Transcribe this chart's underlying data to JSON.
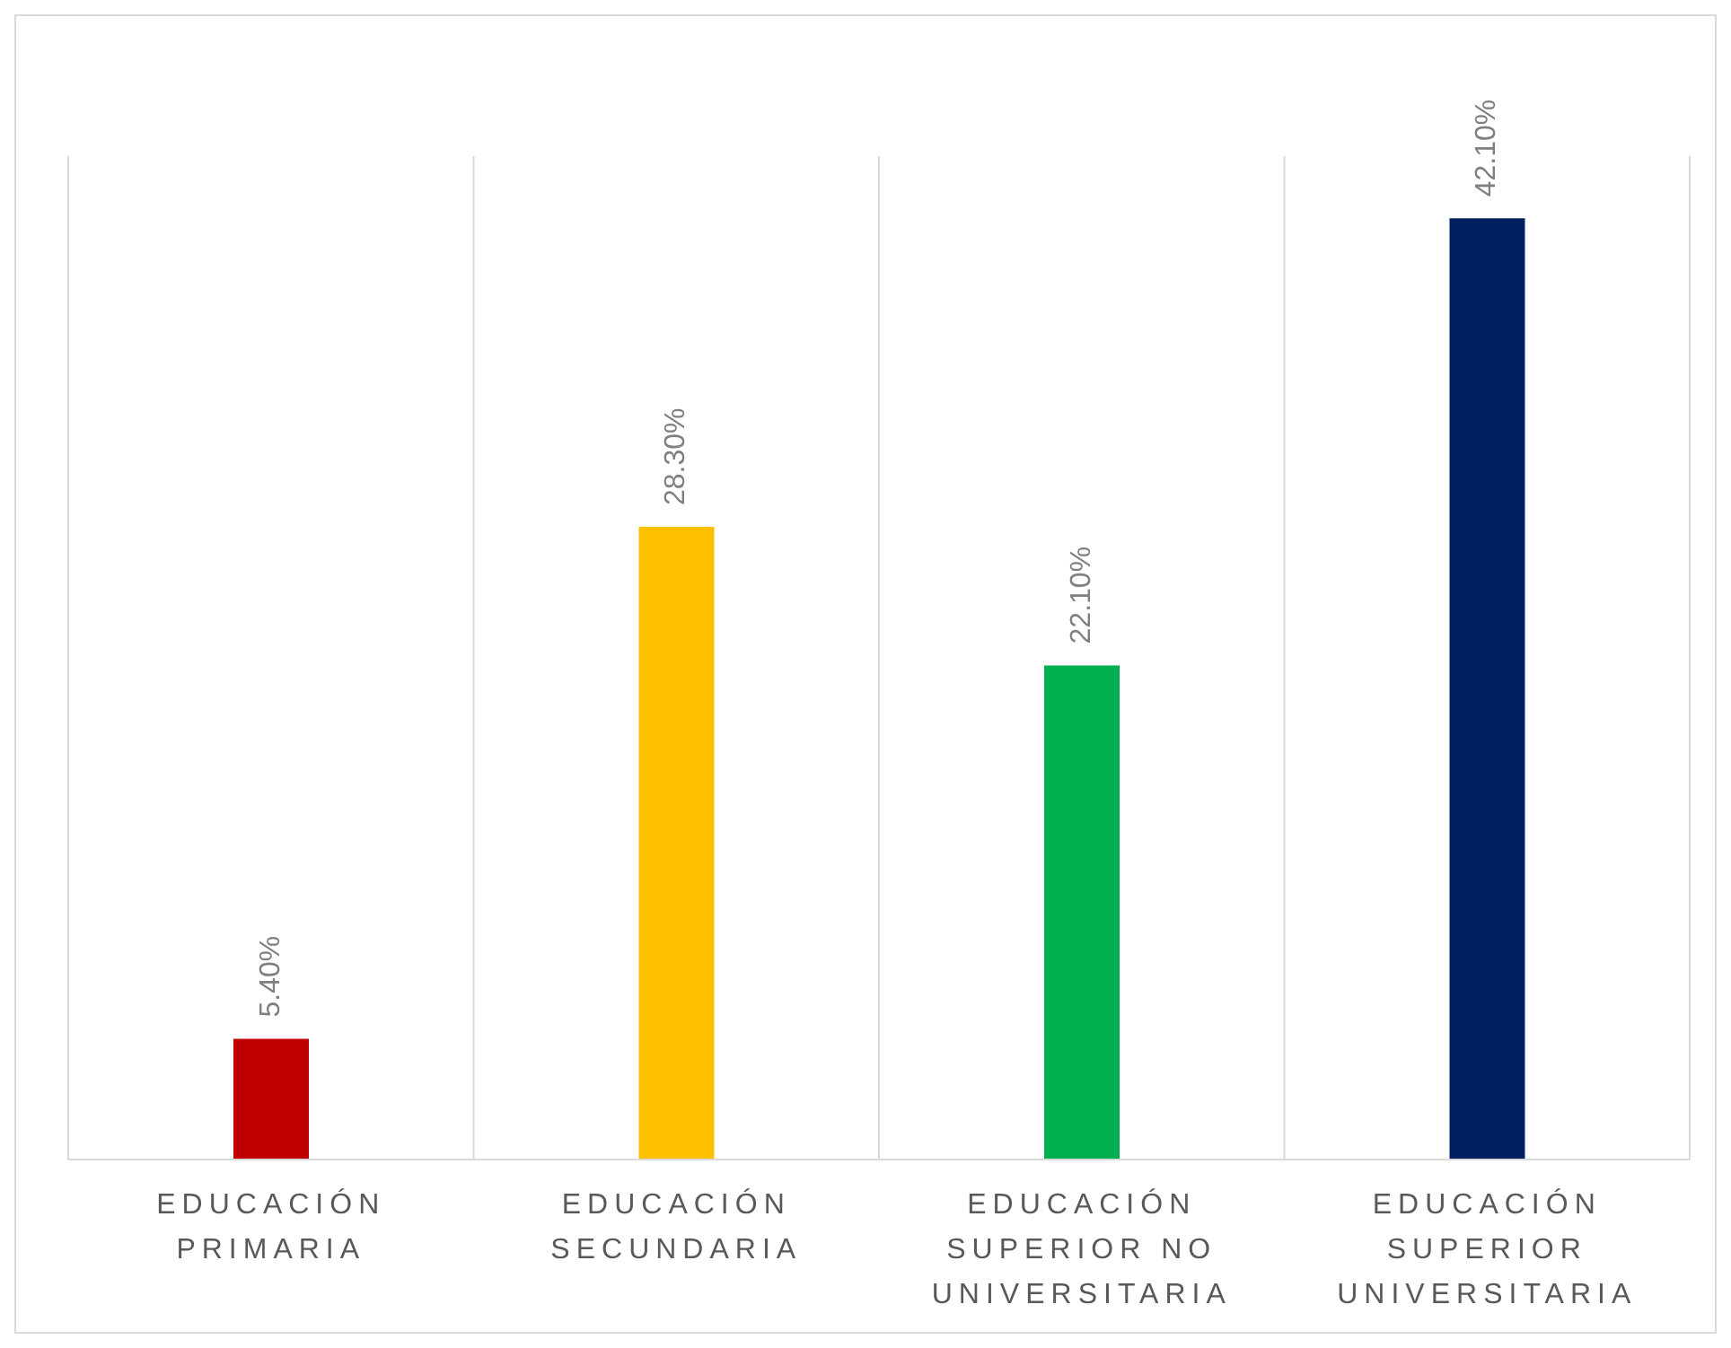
{
  "chart_data": {
    "type": "bar",
    "categories": [
      "EDUCACIÓN PRIMARIA",
      "EDUCACIÓN SECUNDARIA",
      "EDUCACIÓN SUPERIOR NO UNIVERSITARIA",
      "EDUCACIÓN SUPERIOR UNIVERSITARIA"
    ],
    "values": [
      5.4,
      28.3,
      22.1,
      42.1
    ],
    "colors": [
      "#c00000",
      "#ffc000",
      "#00b050",
      "#002060"
    ],
    "value_labels": [
      "5.40%",
      "28.30%",
      "22.10%",
      "42.10%"
    ],
    "grid": "x"
  }
}
